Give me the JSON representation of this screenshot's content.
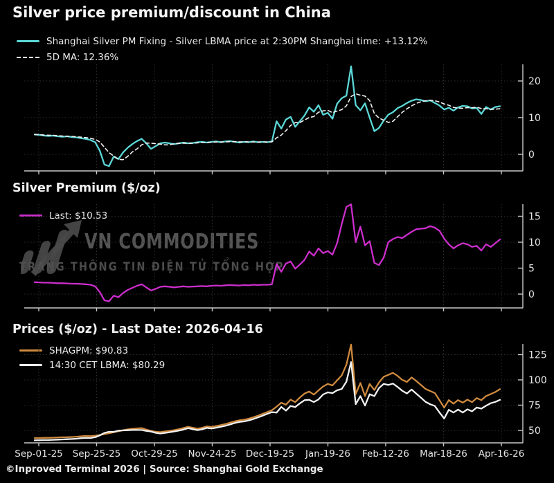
{
  "title": "Silver price premium/discount in China",
  "footer": "©Inproved Terminal 2026 | Source: Shanghai Gold Exchange",
  "watermark": {
    "name": "VN COMMODITIES",
    "subtitle": "TRANG THÔNG TIN ĐIỆN TỬ TỔNG HỢP",
    "logo": "bars-with-arrow-up-icon",
    "color": "#565656"
  },
  "colors": {
    "background": "#000000",
    "cyan": "#5cd8d8",
    "ma_dash": "#f0f0f0",
    "magenta": "#cc2ecc",
    "orange": "#cf8a3e",
    "white_line": "#f2f2f2",
    "grid": "#2f2f2f",
    "axis": "#c9c9c9",
    "tick_label": "#e6e6e6"
  },
  "x_axis": {
    "tick_labels": [
      "Sep-01-25",
      "Sep-25-25",
      "Oct-29-25",
      "Nov-24-25",
      "Dec-19-25",
      "Jan-19-26",
      "Feb-12-26",
      "Mar-18-26",
      "Apr-16-26"
    ],
    "note": "series values are evenly spaced from Sep-01-25 (index 0) to Apr-16-26 (index 100)"
  },
  "panels": [
    {
      "id": "premium-pct",
      "legend": [
        {
          "label": "Shanghai Silver PM Fixing - Silver LBMA price at 2:30PM Shanghai time: +13.12%",
          "color": "#5cd8d8",
          "style": "solid"
        },
        {
          "label": "5D MA: 12.36%",
          "color": "#f0f0f0",
          "style": "dashed"
        }
      ],
      "y_ticks": [
        0,
        10,
        20
      ]
    },
    {
      "id": "premium-usd",
      "heading": "Silver Premium ($/oz)",
      "legend": [
        {
          "label": "Last: $10.53",
          "color": "#cc2ecc",
          "style": "solid"
        }
      ],
      "y_ticks": [
        0,
        5,
        10,
        15
      ]
    },
    {
      "id": "prices",
      "heading": "Prices ($/oz) - Last Date: 2026-04-16",
      "legend": [
        {
          "label": "SHAGPM: $90.83",
          "color": "#cf8a3e",
          "style": "solid"
        },
        {
          "label": "14:30 CET LBMA: $80.29",
          "color": "#f2f2f2",
          "style": "solid"
        }
      ],
      "y_ticks": [
        50,
        75,
        100,
        125
      ]
    }
  ],
  "chart_data": [
    {
      "type": "line",
      "title": "Shanghai Silver premium/discount vs LBMA (%)",
      "x_tick_labels": [
        "Sep-01-25",
        "Sep-25-25",
        "Oct-29-25",
        "Nov-24-25",
        "Dec-19-25",
        "Jan-19-26",
        "Feb-12-26",
        "Mar-18-26",
        "Apr-16-26"
      ],
      "ylim": [
        -4.5,
        24.5
      ],
      "y_ticks": [
        0,
        10,
        20
      ],
      "grid": true,
      "legend_position": "above-top-left",
      "series": [
        {
          "name": "Shanghai Silver PM Fixing - Silver LBMA price at 2:30PM Shanghai time",
          "last": "+13.12%",
          "color": "#5cd8d8",
          "style": "solid",
          "values": [
            5.4,
            5.3,
            5.1,
            5.0,
            5.1,
            4.9,
            4.8,
            4.9,
            4.7,
            4.6,
            4.4,
            4.2,
            3.9,
            3.3,
            1.0,
            -2.8,
            -3.2,
            -0.6,
            -1.3,
            0.5,
            1.8,
            2.8,
            3.6,
            4.2,
            3.0,
            1.5,
            2.2,
            3.0,
            3.2,
            3.0,
            2.8,
            3.0,
            3.2,
            3.0,
            3.1,
            3.3,
            3.4,
            3.2,
            3.4,
            3.5,
            3.3,
            3.5,
            3.6,
            3.4,
            3.2,
            3.4,
            3.3,
            3.5,
            3.3,
            3.4,
            3.3,
            3.5,
            9.0,
            7.0,
            9.5,
            10.2,
            7.5,
            9.0,
            10.6,
            12.8,
            11.6,
            13.4,
            10.8,
            11.3,
            9.7,
            13.8,
            15.3,
            16.0,
            24.0,
            13.4,
            12.0,
            13.9,
            10.0,
            6.3,
            7.2,
            9.2,
            10.8,
            11.5,
            12.6,
            13.2,
            14.0,
            14.6,
            15.0,
            14.8,
            14.5,
            14.7,
            14.0,
            13.3,
            12.2,
            12.7,
            11.9,
            12.8,
            13.2,
            13.1,
            12.5,
            12.6,
            11.0,
            12.9,
            12.2,
            12.9,
            13.12
          ]
        },
        {
          "name": "5D MA",
          "last": "12.36%",
          "color": "#f0f0f0",
          "style": "dashed",
          "derived": "trailing moving average of series 0",
          "ma_window": 5
        }
      ]
    },
    {
      "type": "line",
      "title": "Silver Premium ($/oz)",
      "ylim": [
        -2.7,
        17.3
      ],
      "y_ticks": [
        0,
        5,
        10,
        15
      ],
      "grid": true,
      "series": [
        {
          "name": "Silver Premium",
          "last": "$10.53",
          "color": "#cc2ecc",
          "style": "solid",
          "values": [
            2.3,
            2.25,
            2.2,
            2.2,
            2.15,
            2.1,
            2.1,
            2.05,
            2.0,
            2.0,
            1.95,
            1.9,
            1.8,
            1.5,
            0.4,
            -1.2,
            -1.4,
            -0.3,
            -0.6,
            0.2,
            0.8,
            1.2,
            1.6,
            1.9,
            1.3,
            0.7,
            1.0,
            1.4,
            1.5,
            1.4,
            1.3,
            1.4,
            1.5,
            1.4,
            1.45,
            1.5,
            1.55,
            1.5,
            1.6,
            1.65,
            1.6,
            1.7,
            1.75,
            1.7,
            1.65,
            1.75,
            1.7,
            1.8,
            1.75,
            1.8,
            1.8,
            1.9,
            5.8,
            4.3,
            5.9,
            6.3,
            4.9,
            5.7,
            6.6,
            8.2,
            7.4,
            8.8,
            7.9,
            8.3,
            7.6,
            9.8,
            13.5,
            16.8,
            17.3,
            10.0,
            13.0,
            9.4,
            10.2,
            6.0,
            5.6,
            7.0,
            10.0,
            10.6,
            11.0,
            10.8,
            11.4,
            12.0,
            12.5,
            12.6,
            12.7,
            13.1,
            12.8,
            12.2,
            10.7,
            9.6,
            8.8,
            9.4,
            9.8,
            9.6,
            9.1,
            9.3,
            8.4,
            9.6,
            9.1,
            9.8,
            10.53
          ]
        }
      ]
    },
    {
      "type": "line",
      "title": "Prices ($/oz) - Last Date: 2026-04-16",
      "ylim": [
        37.5,
        135.5
      ],
      "y_ticks": [
        50,
        75,
        100,
        125
      ],
      "grid": true,
      "series": [
        {
          "name": "SHAGPM",
          "last": "$90.83",
          "color": "#cf8a3e",
          "style": "solid",
          "values": [
            42.5,
            42.5,
            42.6,
            42.7,
            42.8,
            43.0,
            43.2,
            43.3,
            43.5,
            43.8,
            44.2,
            44.5,
            44.3,
            44.8,
            45.5,
            46.3,
            47.2,
            48.2,
            49.2,
            50.2,
            51.0,
            51.6,
            52.0,
            52.3,
            50.8,
            49.6,
            48.6,
            48.3,
            49.0,
            49.6,
            50.3,
            51.2,
            52.4,
            53.6,
            52.6,
            51.8,
            52.6,
            54.0,
            53.5,
            54.3,
            55.2,
            56.3,
            57.6,
            59.0,
            60.0,
            60.6,
            61.6,
            63.0,
            64.6,
            66.4,
            68.2,
            70.0,
            73.5,
            77.5,
            75.5,
            80.5,
            78.0,
            82.5,
            86.5,
            88.5,
            85.5,
            89.5,
            93.5,
            96.0,
            94.5,
            99.5,
            104.5,
            115.0,
            135.0,
            86.0,
            97.0,
            84.0,
            96.0,
            90.0,
            97.5,
            103.0,
            105.0,
            107.0,
            104.0,
            100.0,
            98.0,
            102.5,
            99.0,
            95.0,
            91.0,
            89.0,
            87.0,
            80.0,
            72.5,
            80.0,
            76.5,
            80.0,
            77.5,
            80.5,
            78.0,
            82.0,
            80.0,
            84.0,
            86.0,
            88.0,
            90.83
          ]
        },
        {
          "name": "14:30 CET LBMA",
          "last": "$80.29",
          "color": "#f2f2f2",
          "style": "solid",
          "values": [
            40.2,
            40.3,
            40.4,
            40.5,
            40.7,
            40.9,
            41.1,
            41.3,
            41.5,
            41.8,
            42.3,
            42.6,
            42.5,
            43.3,
            45.1,
            47.5,
            48.6,
            48.5,
            49.8,
            50.0,
            50.2,
            50.4,
            50.4,
            50.4,
            49.5,
            48.9,
            47.6,
            46.9,
            47.5,
            48.2,
            49.0,
            49.8,
            50.9,
            52.2,
            51.2,
            50.3,
            51.1,
            52.5,
            51.9,
            52.7,
            53.6,
            54.6,
            55.9,
            57.3,
            58.4,
            58.9,
            59.9,
            61.2,
            62.9,
            64.6,
            66.4,
            68.1,
            67.7,
            73.2,
            69.6,
            74.2,
            73.1,
            76.8,
            79.9,
            80.3,
            78.1,
            80.7,
            85.6,
            87.7,
            86.9,
            89.7,
            91.0,
            98.2,
            117.7,
            76.0,
            84.0,
            74.6,
            85.8,
            84.0,
            91.9,
            96.0,
            95.0,
            96.4,
            93.0,
            89.2,
            86.6,
            90.5,
            86.5,
            82.4,
            78.3,
            75.9,
            74.2,
            67.8,
            61.8,
            70.4,
            67.7,
            70.6,
            67.7,
            70.9,
            68.9,
            72.7,
            71.6,
            74.4,
            76.9,
            78.2,
            80.29
          ]
        }
      ]
    }
  ]
}
